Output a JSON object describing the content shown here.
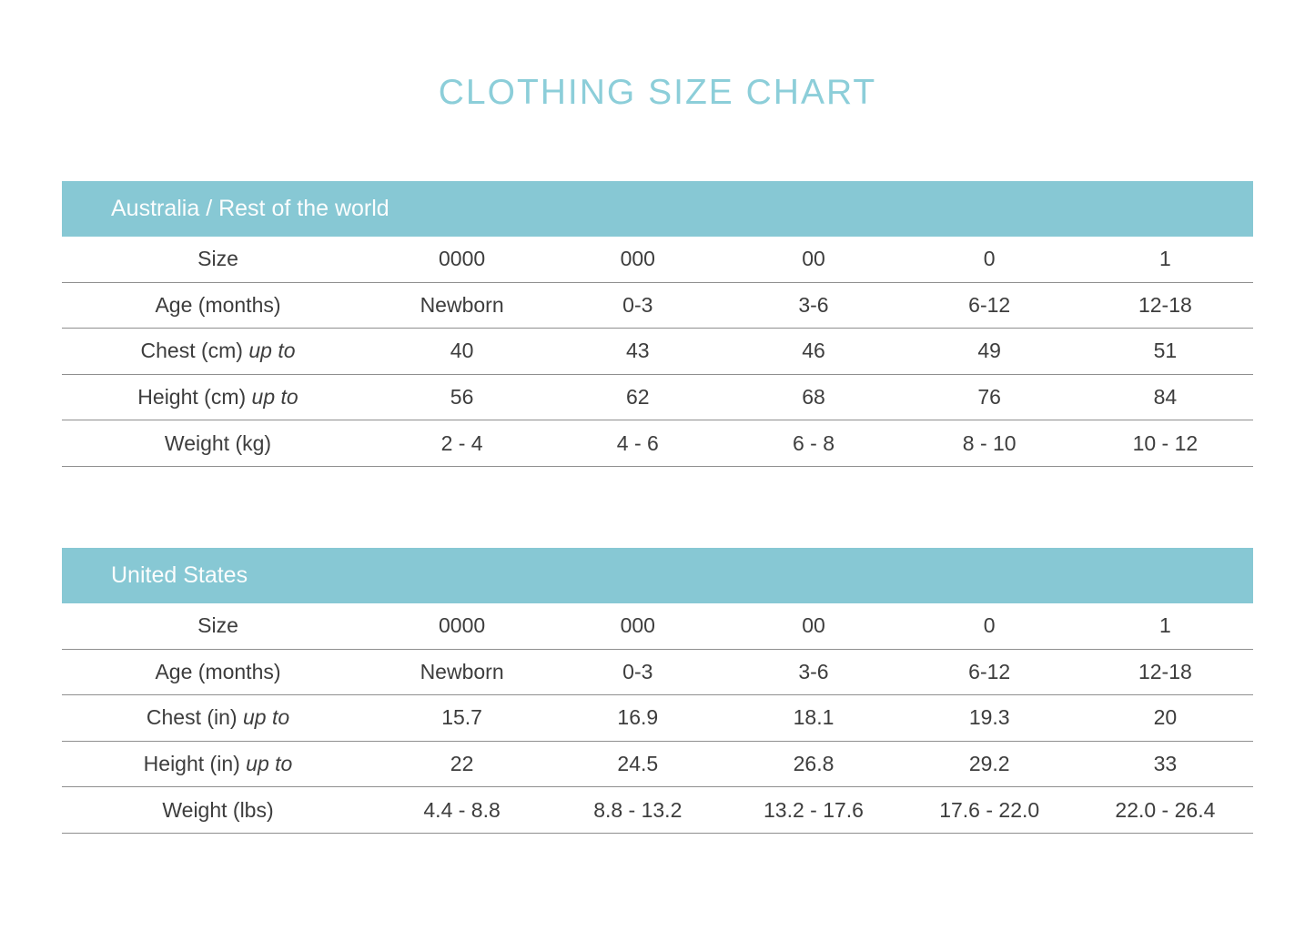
{
  "page_title": "CLOTHING SIZE CHART",
  "colors": {
    "header_teal": "#87c8d4",
    "title_teal": "#8cced9",
    "text": "#3d3d3d",
    "row_line": "#8f8f8f",
    "header_text": "#fbfdfd"
  },
  "tables": [
    {
      "title": "Australia / Rest of the world",
      "rows": [
        {
          "label": "Size",
          "label_suffix": "",
          "values": [
            "0000",
            "000",
            "00",
            "0",
            "1"
          ]
        },
        {
          "label": "Age (months)",
          "label_suffix": "",
          "values": [
            "Newborn",
            "0-3",
            "3-6",
            "6-12",
            "12-18"
          ]
        },
        {
          "label": "Chest (cm)",
          "label_suffix": "up to",
          "values": [
            "40",
            "43",
            "46",
            "49",
            "51"
          ]
        },
        {
          "label": "Height (cm)",
          "label_suffix": "up to",
          "values": [
            "56",
            "62",
            "68",
            "76",
            "84"
          ]
        },
        {
          "label": "Weight (kg)",
          "label_suffix": "",
          "values": [
            "2 - 4",
            "4 - 6",
            "6 - 8",
            "8 - 10",
            "10 - 12"
          ]
        }
      ]
    },
    {
      "title": "United States",
      "rows": [
        {
          "label": "Size",
          "label_suffix": "",
          "values": [
            "0000",
            "000",
            "00",
            "0",
            "1"
          ]
        },
        {
          "label": "Age (months)",
          "label_suffix": "",
          "values": [
            "Newborn",
            "0-3",
            "3-6",
            "6-12",
            "12-18"
          ]
        },
        {
          "label": "Chest (in)",
          "label_suffix": "up to",
          "values": [
            "15.7",
            "16.9",
            "18.1",
            "19.3",
            "20"
          ]
        },
        {
          "label": "Height (in)",
          "label_suffix": "up to",
          "values": [
            "22",
            "24.5",
            "26.8",
            "29.2",
            "33"
          ]
        },
        {
          "label": "Weight (lbs)",
          "label_suffix": "",
          "values": [
            "4.4 - 8.8",
            "8.8 - 13.2",
            "13.2 - 17.6",
            "17.6 - 22.0",
            "22.0 - 26.4"
          ]
        }
      ]
    }
  ],
  "chart_data": [
    {
      "type": "table",
      "title": "Australia / Rest of the world",
      "row_headers": [
        "Size",
        "Age (months)",
        "Chest (cm) up to",
        "Height (cm) up to",
        "Weight (kg)"
      ],
      "rows": [
        [
          "0000",
          "000",
          "00",
          "0",
          "1"
        ],
        [
          "Newborn",
          "0-3",
          "3-6",
          "6-12",
          "12-18"
        ],
        [
          "40",
          "43",
          "46",
          "49",
          "51"
        ],
        [
          "56",
          "62",
          "68",
          "76",
          "84"
        ],
        [
          "2 - 4",
          "4 - 6",
          "6 - 8",
          "8 - 10",
          "10 - 12"
        ]
      ]
    },
    {
      "type": "table",
      "title": "United States",
      "row_headers": [
        "Size",
        "Age (months)",
        "Chest (in) up to",
        "Height (in) up to",
        "Weight (lbs)"
      ],
      "rows": [
        [
          "0000",
          "000",
          "00",
          "0",
          "1"
        ],
        [
          "Newborn",
          "0-3",
          "3-6",
          "6-12",
          "12-18"
        ],
        [
          "15.7",
          "16.9",
          "18.1",
          "19.3",
          "20"
        ],
        [
          "22",
          "24.5",
          "26.8",
          "29.2",
          "33"
        ],
        [
          "4.4 - 8.8",
          "8.8 - 13.2",
          "13.2 - 17.6",
          "17.6 - 22.0",
          "22.0 - 26.4"
        ]
      ]
    }
  ]
}
